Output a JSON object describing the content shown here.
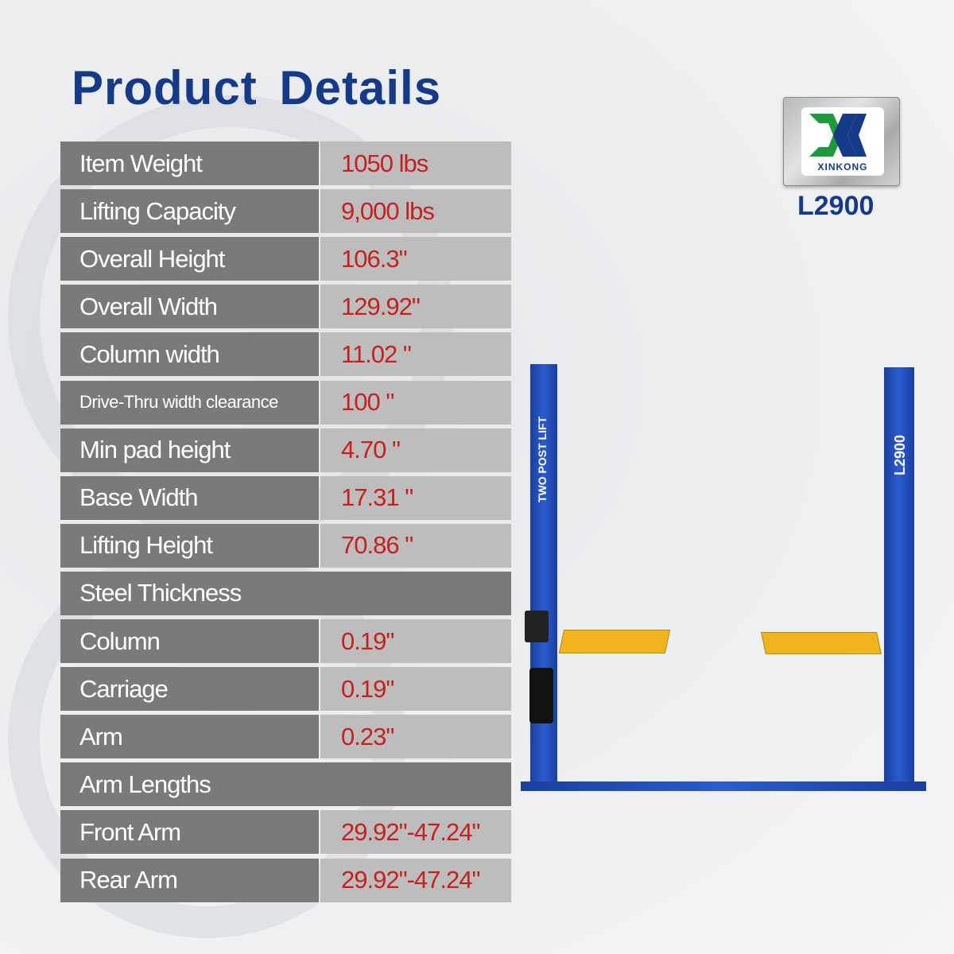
{
  "header": {
    "title": "Product Details"
  },
  "brand": {
    "logo_text": "XINKONG",
    "model": "L2900"
  },
  "lift": {
    "left_post_text": "TWO POST LIFT",
    "right_post_text": "L2900"
  },
  "colors": {
    "title": "#163a8a",
    "label_bg": "#7a7a7a",
    "value_bg": "#bdbdbd",
    "value_text": "#c6201f",
    "post": "#2149b0",
    "arm": "#f0b41c"
  },
  "specs": [
    {
      "label": "Item Weight",
      "value": "1050 lbs"
    },
    {
      "label": "Lifting Capacity",
      "value": "9,000 lbs"
    },
    {
      "label": "Overall Height",
      "value": "106.3\""
    },
    {
      "label": "Overall Width",
      "value": "129.92\""
    },
    {
      "label": "Column width",
      "value": "11.02 \""
    },
    {
      "label": "Drive-Thru width clearance",
      "value": "100 \""
    },
    {
      "label": "Min pad height",
      "value": "4.70 \""
    },
    {
      "label": "Base Width",
      "value": "17.31 \""
    },
    {
      "label": "Lifting Height",
      "value": "70.86 \""
    },
    {
      "label": "Steel Thickness",
      "section": true
    },
    {
      "label": "Column",
      "value": "0.19\""
    },
    {
      "label": "Carriage",
      "value": "0.19\""
    },
    {
      "label": "Arm",
      "value": "0.23\""
    },
    {
      "label": "Arm Lengths",
      "section": true
    },
    {
      "label": "Front Arm",
      "value": "29.92\"-47.24\""
    },
    {
      "label": "Rear Arm",
      "value": "29.92\"-47.24\""
    }
  ]
}
